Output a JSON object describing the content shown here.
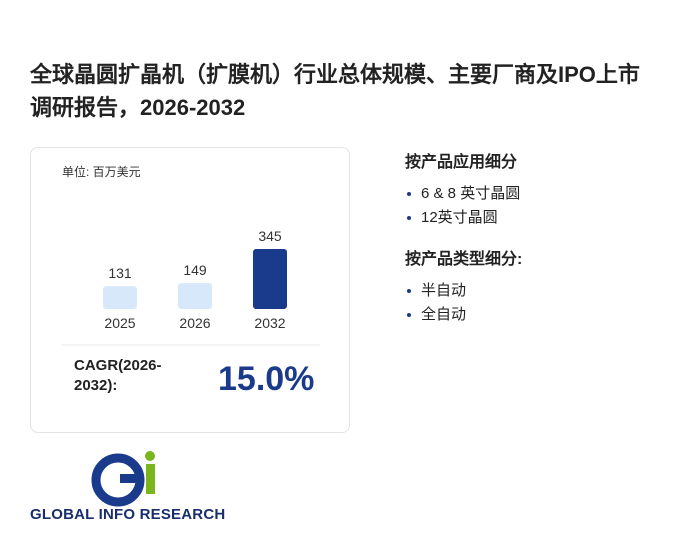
{
  "title": "全球晶圆扩晶机（扩膜机）行业总体规模、主要厂商及IPO上市调研报告，2026-2032",
  "chart_data": {
    "type": "bar",
    "unit_label": "单位: 百万美元",
    "categories": [
      "2025",
      "2026",
      "2032"
    ],
    "values": [
      131,
      149,
      345
    ],
    "colors": [
      "#d6e8fa",
      "#d6e8fa",
      "#1a3a8c"
    ]
  },
  "cagr": {
    "label": "CAGR(2026-2032):",
    "value": "15.0%"
  },
  "segments": [
    {
      "title": "按产品应用细分",
      "items": [
        "6 & 8 英寸晶圆",
        "12英寸晶圆"
      ]
    },
    {
      "title": "按产品类型细分:",
      "items": [
        "半自动",
        "全自动"
      ]
    }
  ],
  "logo": {
    "text": "GLOBAL INFO RESEARCH"
  }
}
